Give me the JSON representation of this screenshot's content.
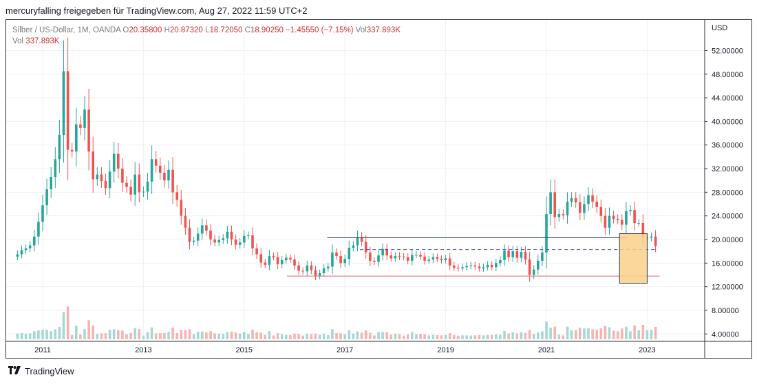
{
  "header": {
    "caption": "mercuryfalling freigegeben für TradingView.com, Aug 27, 2022 11:59 UTC+2"
  },
  "legend": {
    "symbol": "Silber / US-Dollar, 1M, OANDA",
    "o_label": "O",
    "o_value": "20.35800",
    "h_label": "H",
    "h_value": "20.87320",
    "l_label": "L",
    "l_value": "18.72050",
    "c_label": "C",
    "c_value": "18.90250",
    "change": "−1.45550 (−7.15%)",
    "vol_label": "Vol",
    "vol_value": "337.893K",
    "vol_line_label": "Vol",
    "vol_line_value": "337.893K"
  },
  "footer": {
    "brand": "TradingView"
  },
  "chart_data": {
    "type": "candlestick",
    "title": "Silber / US-Dollar, 1M, OANDA",
    "currency": "USD",
    "y_ticks": [
      "52.00000",
      "48.00000",
      "44.00000",
      "40.00000",
      "36.00000",
      "32.00000",
      "28.00000",
      "24.00000",
      "20.00000",
      "16.00000",
      "12.00000",
      "8.00000",
      "4.00000"
    ],
    "x_ticks": [
      "2011",
      "2013",
      "2015",
      "2017",
      "2019",
      "2021",
      "2023"
    ],
    "ylim": [
      2.5,
      54
    ],
    "xlim": [
      2010.0,
      2023.9
    ],
    "grid": true,
    "colors": {
      "up": "#26a69a",
      "down": "#ef5350",
      "vol_up": "#a5d8d2",
      "vol_down": "#f5b3b1",
      "box": "#fbd08a"
    },
    "monthly_close": [
      17.5,
      18.2,
      18.5,
      19.0,
      20.5,
      23.0,
      25.8,
      28.5,
      30.6,
      33.6,
      37.7,
      48.5,
      35.2,
      34.9,
      39.5,
      38.9,
      42.0,
      34.9,
      30.2,
      31.0,
      29.9,
      28.7,
      31.5,
      34.5,
      32.0,
      29.6,
      28.9,
      27.6,
      31.0,
      28.0,
      28.1,
      29.8,
      33.6,
      32.5,
      31.3,
      30.0,
      31.8,
      28.0,
      26.7,
      24.0,
      22.0,
      19.6,
      19.8,
      21.0,
      22.4,
      21.5,
      20.0,
      19.5,
      19.9,
      20.2,
      21.3,
      20.0,
      19.1,
      19.5,
      20.6,
      20.7,
      18.5,
      17.5,
      16.1,
      15.7,
      17.2,
      17.0,
      15.8,
      16.5,
      16.9,
      16.6,
      15.6,
      14.7,
      14.6,
      15.6,
      14.8,
      13.8,
      14.3,
      15.1,
      15.4,
      17.8,
      17.2,
      16.0,
      16.7,
      18.6,
      19.0,
      20.4,
      19.6,
      17.8,
      16.4,
      16.2,
      17.3,
      18.4,
      17.3,
      16.8,
      17.2,
      17.1,
      17.0,
      16.4,
      17.4,
      17.4,
      17.1,
      16.4,
      16.6,
      17.0,
      16.7,
      16.5,
      16.8,
      15.6,
      15.2,
      15.1,
      15.3,
      15.5,
      15.6,
      15.4,
      15.1,
      15.3,
      15.7,
      15.3,
      16.0,
      16.5,
      18.1,
      17.0,
      18.0,
      16.9,
      17.9,
      16.6,
      14.0,
      14.9,
      16.4,
      17.8,
      24.3,
      28.0,
      23.8,
      24.3,
      24.1,
      26.4,
      27.0,
      26.3,
      24.5,
      26.0,
      27.5,
      26.4,
      25.5,
      24.0,
      22.0,
      24.0,
      23.5,
      23.3,
      22.5,
      24.8,
      25.0,
      22.8,
      22.8,
      20.3,
      20.3,
      20.5,
      18.9
    ],
    "reference_levels": [
      20.3,
      18.3,
      13.8
    ],
    "forecast_box": {
      "from": "2022-06",
      "to": "2022-12",
      "high": 21.0,
      "low": 12.6
    }
  }
}
